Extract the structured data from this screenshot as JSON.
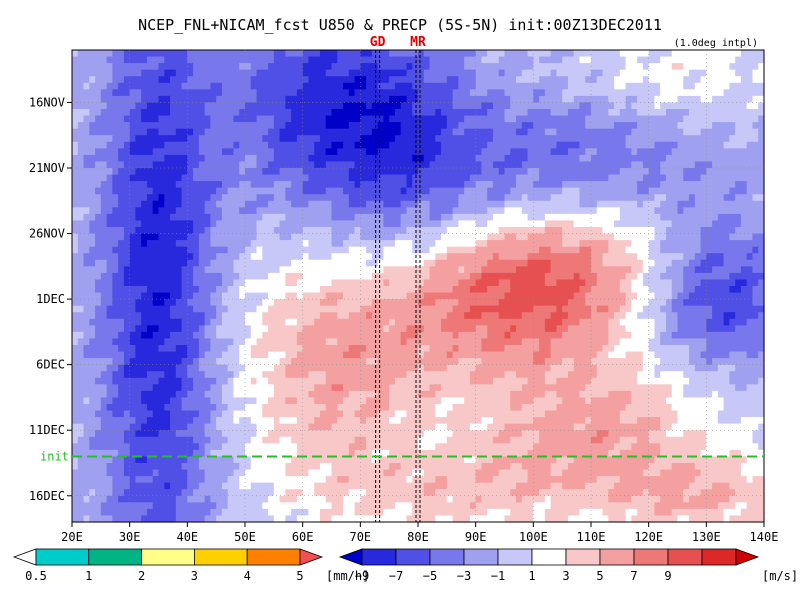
{
  "chart_data": {
    "type": "heatmap",
    "title": "NCEP_FNL+NICAM_fcst U850 & PRECP (5S-5N) init:00Z13DEC2011",
    "subtitle": "(1.0deg intpl)",
    "x_ticks": [
      "20E",
      "30E",
      "40E",
      "50E",
      "60E",
      "70E",
      "80E",
      "90E",
      "100E",
      "110E",
      "120E",
      "130E",
      "140E"
    ],
    "xlim": [
      20,
      140
    ],
    "y_ticks": [
      "16NOV",
      "21NOV",
      "26NOV",
      "1DEC",
      "6DEC",
      "11DEC",
      "16DEC"
    ],
    "ylim": [
      "12NOV2011",
      "18DEC2011"
    ],
    "markers": [
      {
        "label": "GD",
        "lon": 73
      },
      {
        "label": "MR",
        "lon": 80
      }
    ],
    "init_line": {
      "label": "init",
      "date": "13DEC2011"
    },
    "u850": {
      "unit": "[m/s]",
      "levels": [
        -9,
        -7,
        -5,
        -3,
        -1,
        1,
        3,
        5,
        7,
        9
      ],
      "colors": [
        "#0000c8",
        "#2828dc",
        "#5050e6",
        "#7878ec",
        "#a0a0f0",
        "#c8c8f8",
        "#ffffff",
        "#f8c8c8",
        "#f4a0a0",
        "#ee7878",
        "#e65050",
        "#dc2828",
        "#d20000"
      ],
      "blobs": [
        {
          "lon": 100,
          "day": 18,
          "u": 11,
          "sigma_lon": 16,
          "sigma_day": 4.5,
          "slope": 0.07
        },
        {
          "lon": 65,
          "day": 24,
          "u": 6,
          "sigma_lon": 12,
          "sigma_day": 7,
          "slope": 0
        },
        {
          "lon": 110,
          "day": 29,
          "u": 6,
          "sigma_lon": 16,
          "sigma_day": 4,
          "slope": 0.06
        },
        {
          "lon": 130,
          "day": 34,
          "u": 5,
          "sigma_lon": 12,
          "sigma_day": 2.5,
          "slope": 0
        },
        {
          "lon": 85,
          "day": 34,
          "u": 3,
          "sigma_lon": 18,
          "sigma_day": 2.5,
          "slope": 0
        },
        {
          "lon": 35,
          "day": 18,
          "u": -8,
          "sigma_lon": 7,
          "sigma_day": 18,
          "slope": 0
        },
        {
          "lon": 132,
          "day": 19,
          "u": -7,
          "sigma_lon": 9,
          "sigma_day": 4,
          "slope": 0
        },
        {
          "lon": 60,
          "day": 4,
          "u": -5,
          "sigma_lon": 10,
          "sigma_day": 6,
          "slope": 0
        },
        {
          "lon": 75,
          "day": 6,
          "u": -6,
          "sigma_lon": 10,
          "sigma_day": 6,
          "slope": 0
        },
        {
          "lon": 105,
          "day": 9,
          "u": -5,
          "sigma_lon": 20,
          "sigma_day": 4,
          "slope": 0
        },
        {
          "lon": 125,
          "day": 2,
          "u": 3,
          "sigma_lon": 12,
          "sigma_day": 3,
          "slope": 0
        }
      ]
    },
    "precp": {
      "unit": "[mm/h]",
      "levels": [
        0.5,
        1,
        2,
        3,
        4,
        5
      ],
      "colors": [
        "#ffffff",
        "#00cccc",
        "#00b484",
        "#ffff88",
        "#ffd000",
        "#ff8000",
        "#f05050"
      ]
    }
  }
}
